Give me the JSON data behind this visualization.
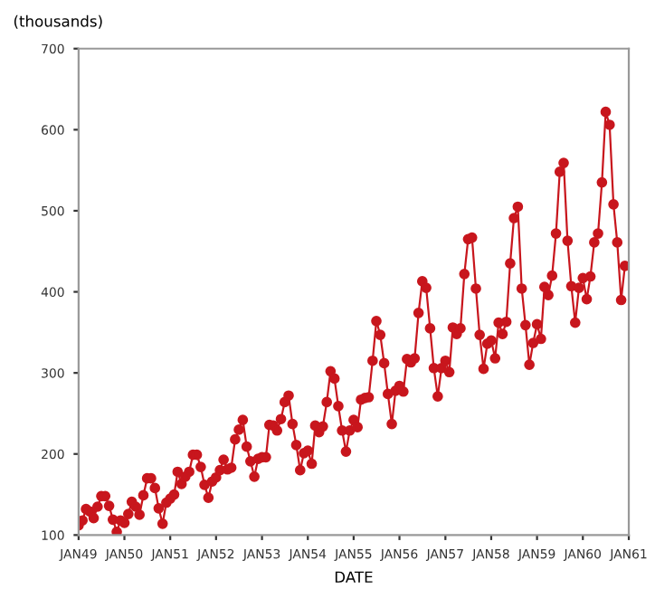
{
  "chart_data": {
    "type": "line",
    "ylabel": "(thousands)",
    "xlabel": "DATE",
    "x": [
      "1949-01",
      "1949-02",
      "1949-03",
      "1949-04",
      "1949-05",
      "1949-06",
      "1949-07",
      "1949-08",
      "1949-09",
      "1949-10",
      "1949-11",
      "1949-12",
      "1950-01",
      "1950-02",
      "1950-03",
      "1950-04",
      "1950-05",
      "1950-06",
      "1950-07",
      "1950-08",
      "1950-09",
      "1950-10",
      "1950-11",
      "1950-12",
      "1951-01",
      "1951-02",
      "1951-03",
      "1951-04",
      "1951-05",
      "1951-06",
      "1951-07",
      "1951-08",
      "1951-09",
      "1951-10",
      "1951-11",
      "1951-12",
      "1952-01",
      "1952-02",
      "1952-03",
      "1952-04",
      "1952-05",
      "1952-06",
      "1952-07",
      "1952-08",
      "1952-09",
      "1952-10",
      "1952-11",
      "1952-12",
      "1953-01",
      "1953-02",
      "1953-03",
      "1953-04",
      "1953-05",
      "1953-06",
      "1953-07",
      "1953-08",
      "1953-09",
      "1953-10",
      "1953-11",
      "1953-12",
      "1954-01",
      "1954-02",
      "1954-03",
      "1954-04",
      "1954-05",
      "1954-06",
      "1954-07",
      "1954-08",
      "1954-09",
      "1954-10",
      "1954-11",
      "1954-12",
      "1955-01",
      "1955-02",
      "1955-03",
      "1955-04",
      "1955-05",
      "1955-06",
      "1955-07",
      "1955-08",
      "1955-09",
      "1955-10",
      "1955-11",
      "1955-12",
      "1956-01",
      "1956-02",
      "1956-03",
      "1956-04",
      "1956-05",
      "1956-06",
      "1956-07",
      "1956-08",
      "1956-09",
      "1956-10",
      "1956-11",
      "1956-12",
      "1957-01",
      "1957-02",
      "1957-03",
      "1957-04",
      "1957-05",
      "1957-06",
      "1957-07",
      "1957-08",
      "1957-09",
      "1957-10",
      "1957-11",
      "1957-12",
      "1958-01",
      "1958-02",
      "1958-03",
      "1958-04",
      "1958-05",
      "1958-06",
      "1958-07",
      "1958-08",
      "1958-09",
      "1958-10",
      "1958-11",
      "1958-12",
      "1959-01",
      "1959-02",
      "1959-03",
      "1959-04",
      "1959-05",
      "1959-06",
      "1959-07",
      "1959-08",
      "1959-09",
      "1959-10",
      "1959-11",
      "1959-12",
      "1960-01",
      "1960-02",
      "1960-03",
      "1960-04",
      "1960-05",
      "1960-06",
      "1960-07",
      "1960-08",
      "1960-09",
      "1960-10",
      "1960-11",
      "1960-12"
    ],
    "series": [
      {
        "color": "#c8161d",
        "values": [
          112,
          118,
          132,
          129,
          121,
          135,
          148,
          148,
          136,
          119,
          104,
          118,
          115,
          126,
          141,
          135,
          125,
          149,
          170,
          170,
          158,
          133,
          114,
          140,
          145,
          150,
          178,
          163,
          172,
          178,
          199,
          199,
          184,
          162,
          146,
          166,
          171,
          180,
          193,
          181,
          183,
          218,
          230,
          242,
          209,
          191,
          172,
          194,
          196,
          196,
          236,
          235,
          229,
          243,
          264,
          272,
          237,
          211,
          180,
          201,
          204,
          188,
          235,
          227,
          234,
          264,
          302,
          293,
          259,
          229,
          203,
          229,
          242,
          233,
          267,
          269,
          270,
          315,
          364,
          347,
          312,
          274,
          237,
          278,
          284,
          277,
          317,
          313,
          318,
          374,
          413,
          405,
          355,
          306,
          271,
          306,
          315,
          301,
          356,
          348,
          355,
          422,
          465,
          467,
          404,
          347,
          305,
          336,
          340,
          318,
          362,
          348,
          363,
          435,
          491,
          505,
          404,
          359,
          310,
          337,
          360,
          342,
          406,
          396,
          420,
          472,
          548,
          559,
          463,
          407,
          362,
          405,
          417,
          391,
          419,
          461,
          472,
          535,
          622,
          606,
          508,
          461,
          390,
          432
        ]
      }
    ],
    "xlim": [
      "1949-01",
      "1961-01"
    ],
    "xticks": [
      {
        "value": "1949-01",
        "label": "JAN49"
      },
      {
        "value": "1950-01",
        "label": "JAN50"
      },
      {
        "value": "1951-01",
        "label": "JAN51"
      },
      {
        "value": "1952-01",
        "label": "JAN52"
      },
      {
        "value": "1953-01",
        "label": "JAN53"
      },
      {
        "value": "1954-01",
        "label": "JAN54"
      },
      {
        "value": "1955-01",
        "label": "JAN55"
      },
      {
        "value": "1956-01",
        "label": "JAN56"
      },
      {
        "value": "1957-01",
        "label": "JAN57"
      },
      {
        "value": "1958-01",
        "label": "JAN58"
      },
      {
        "value": "1959-01",
        "label": "JAN59"
      },
      {
        "value": "1960-01",
        "label": "JAN60"
      },
      {
        "value": "1961-01",
        "label": "JAN61"
      }
    ],
    "ylim": [
      100,
      700
    ],
    "yticks": [
      100,
      200,
      300,
      400,
      500,
      600,
      700
    ],
    "marker": "circle",
    "line_style": "solid",
    "grid": false,
    "legend": false
  }
}
